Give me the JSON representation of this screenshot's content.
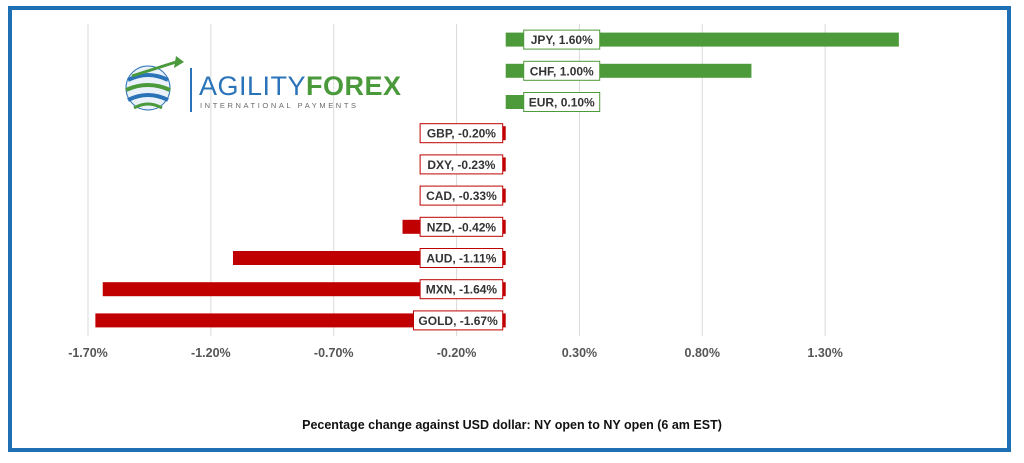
{
  "logo": {
    "part1": "AGILITY",
    "part2": "FOREX",
    "tagline": "INTERNATIONAL PAYMENTS"
  },
  "chart_data": {
    "type": "bar",
    "orientation": "horizontal",
    "categories": [
      "JPY",
      "CHF",
      "EUR",
      "GBP",
      "DXY",
      "CAD",
      "NZD",
      "AUD",
      "MXN",
      "GOLD"
    ],
    "values": [
      1.6,
      1.0,
      0.1,
      -0.2,
      -0.23,
      -0.33,
      -0.42,
      -1.11,
      -1.64,
      -1.67
    ],
    "data_labels": [
      "JPY, 1.60%",
      "CHF, 1.00%",
      "EUR, 0.10%",
      "GBP, -0.20%",
      "DXY, -0.23%",
      "CAD, -0.33%",
      "NZD, -0.42%",
      "AUD, -1.11%",
      "MXN, -1.64%",
      "GOLD, -1.67%"
    ],
    "x_ticks": [
      -1.7,
      -1.2,
      -0.7,
      -0.2,
      0.3,
      0.8,
      1.3
    ],
    "x_tick_labels": [
      "-1.70%",
      "-1.20%",
      "-0.70%",
      "-0.20%",
      "0.30%",
      "0.80%",
      "1.30%"
    ],
    "xlim": [
      -1.7,
      1.8
    ],
    "grid": true,
    "legend": false,
    "positive_color": "#4d9a3b",
    "negative_color": "#c00000",
    "xlabel": "Pecentage change against USD dollar:  NY open to NY open  (6 am EST)"
  },
  "colors": {
    "frame": "#1f6fb5",
    "grid": "#d9d9d9",
    "logo_blue": "#2b73b8",
    "logo_green": "#4a9a3c"
  }
}
